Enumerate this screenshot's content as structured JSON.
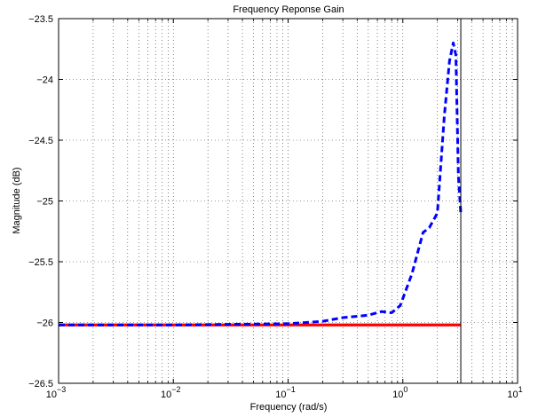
{
  "chart_data": {
    "type": "line",
    "title": "Frequency Reponse Gain",
    "xlabel": "Frequency (rad/s)",
    "ylabel": "Magnitude (dB)",
    "xscale": "log",
    "xlim": [
      0.001,
      10
    ],
    "ylim": [
      -26.5,
      -23.5
    ],
    "grid": true,
    "xticks": [
      {
        "value": 0.001,
        "base": "10",
        "exp": "−3"
      },
      {
        "value": 0.01,
        "base": "10",
        "exp": "−2"
      },
      {
        "value": 0.1,
        "base": "10",
        "exp": "−1"
      },
      {
        "value": 1,
        "base": "10",
        "exp": "0"
      },
      {
        "value": 10,
        "base": "10",
        "exp": "1"
      }
    ],
    "yticks": [
      {
        "value": -23.5,
        "label": "−23.5"
      },
      {
        "value": -24,
        "label": "−24"
      },
      {
        "value": -24.5,
        "label": "−24.5"
      },
      {
        "value": -25,
        "label": "−25"
      },
      {
        "value": -25.5,
        "label": "−25.5"
      },
      {
        "value": -26,
        "label": "−26"
      },
      {
        "value": -26.5,
        "label": "−26.5"
      }
    ],
    "vline_x": 3.2,
    "series": [
      {
        "color": "#ff0000",
        "style": "solid",
        "x": [
          0.001,
          3.2
        ],
        "y": [
          -26.02,
          -26.02
        ]
      },
      {
        "color": "#0000ff",
        "style": "dashed",
        "x": [
          0.001,
          0.01,
          0.1,
          0.2,
          0.3,
          0.5,
          0.65,
          0.8,
          0.95,
          1.2,
          1.5,
          1.7,
          2.0,
          2.3,
          2.55,
          2.75,
          2.9,
          3.05,
          3.2
        ],
        "y": [
          -26.02,
          -26.02,
          -26.01,
          -25.99,
          -25.96,
          -25.94,
          -25.91,
          -25.92,
          -25.86,
          -25.6,
          -25.26,
          -25.22,
          -25.1,
          -24.3,
          -23.85,
          -23.7,
          -23.8,
          -24.8,
          -25.1
        ]
      }
    ]
  }
}
